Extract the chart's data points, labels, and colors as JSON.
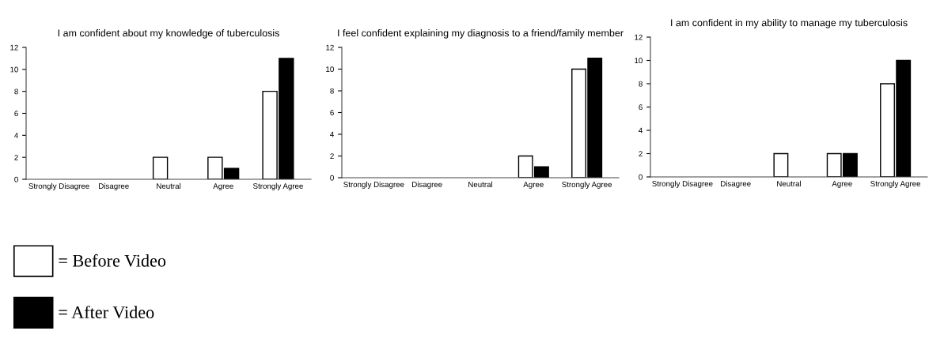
{
  "chart_data": [
    {
      "type": "bar",
      "title": "I am confident about my knowledge of tuberculosis",
      "categories": [
        "Strongly Disagree",
        "Disagree",
        "Neutral",
        "Agree",
        "Strongly Agree"
      ],
      "ylim": [
        0,
        12
      ],
      "yticks": [
        0,
        2,
        4,
        6,
        8,
        10,
        12
      ],
      "grid": false,
      "legend": "bottom left",
      "series": [
        {
          "name": "= Before Video",
          "color": "#ffffff",
          "values": [
            0,
            0,
            2,
            2,
            8
          ]
        },
        {
          "name": "= After Video",
          "color": "#000000",
          "values": [
            0,
            0,
            0,
            1,
            11
          ]
        }
      ]
    },
    {
      "type": "bar",
      "title": "I feel confident explaining my diagnosis to a friend/family member",
      "categories": [
        "Strongly Disagree",
        "Disagree",
        "Neutral",
        "Agree",
        "Strongly Agree"
      ],
      "ylim": [
        0,
        12
      ],
      "yticks": [
        0,
        2,
        4,
        6,
        8,
        10,
        12
      ],
      "grid": false,
      "series": [
        {
          "color": "#ffffff",
          "values": [
            0,
            0,
            0,
            2,
            10
          ]
        },
        {
          "color": "#000000",
          "values": [
            0,
            0,
            0,
            1,
            11
          ]
        }
      ]
    },
    {
      "type": "bar",
      "title": "I am confident in my ability to manage my tuberculosis",
      "categories": [
        "Strongly Disagree",
        "Disagree",
        "Neutral",
        "Agree",
        "Strongly Agree"
      ],
      "ylim": [
        0,
        12
      ],
      "yticks": [
        0,
        2,
        4,
        6,
        8,
        10,
        12
      ],
      "grid": false,
      "series": [
        {
          "color": "#ffffff",
          "values": [
            0,
            0,
            2,
            2,
            8
          ]
        },
        {
          "color": "#000000",
          "values": [
            0,
            0,
            0,
            2,
            10
          ]
        }
      ]
    }
  ]
}
